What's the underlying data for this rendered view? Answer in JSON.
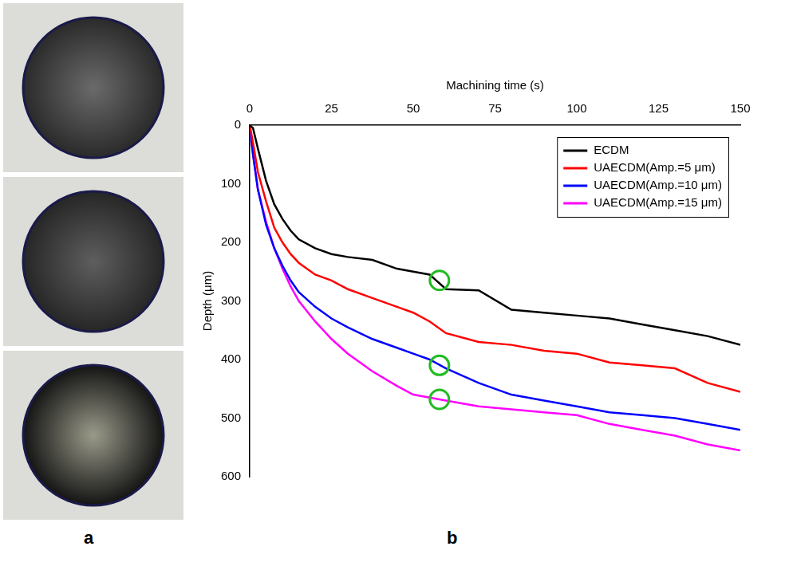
{
  "chart_data": {
    "type": "line",
    "x_label": "Machining time (s)",
    "y_label": "Depth (μm)",
    "x": [
      0,
      1,
      2.5,
      5,
      7.5,
      10,
      12.5,
      15,
      20,
      25,
      30,
      37.5,
      45,
      50,
      55,
      60,
      70,
      80,
      90,
      100,
      110,
      120,
      130,
      140,
      150
    ],
    "series": [
      {
        "name": "ECDM",
        "color": "#000000",
        "values": [
          0,
          5,
          40,
          95,
          135,
          160,
          180,
          195,
          210,
          220,
          225,
          230,
          245,
          250,
          255,
          280,
          282,
          315,
          320,
          325,
          330,
          340,
          350,
          360,
          375
        ]
      },
      {
        "name": "UAECDM(Amp.=5 μm)",
        "color": "#ff0000",
        "values": [
          0,
          30,
          80,
          130,
          175,
          200,
          220,
          235,
          255,
          265,
          280,
          295,
          310,
          320,
          335,
          355,
          370,
          375,
          385,
          390,
          405,
          410,
          415,
          440,
          455
        ]
      },
      {
        "name": "UAECDM(Amp.=10 μm)",
        "color": "#0000ff",
        "values": [
          0,
          50,
          110,
          170,
          210,
          240,
          265,
          285,
          310,
          330,
          345,
          365,
          380,
          390,
          400,
          415,
          440,
          460,
          470,
          480,
          490,
          495,
          500,
          510,
          520
        ]
      },
      {
        "name": "UAECDM(Amp.=15 μm)",
        "color": "#ff00ff",
        "values": [
          0,
          50,
          110,
          165,
          210,
          245,
          275,
          300,
          335,
          365,
          390,
          420,
          445,
          460,
          465,
          470,
          480,
          485,
          490,
          495,
          510,
          520,
          530,
          545,
          555
        ]
      }
    ],
    "highlights": [
      {
        "x": 58,
        "y": 265
      },
      {
        "x": 58,
        "y": 410
      },
      {
        "x": 58,
        "y": 468
      }
    ],
    "xlim": [
      0,
      150
    ],
    "xticks": [
      0,
      25,
      50,
      75,
      100,
      125,
      150
    ],
    "ylim": [
      600,
      0
    ],
    "yticks": [
      0,
      100,
      200,
      300,
      400,
      500,
      600
    ],
    "grid": false,
    "legend": "top-right"
  },
  "panel_labels": [
    "a",
    "b"
  ]
}
